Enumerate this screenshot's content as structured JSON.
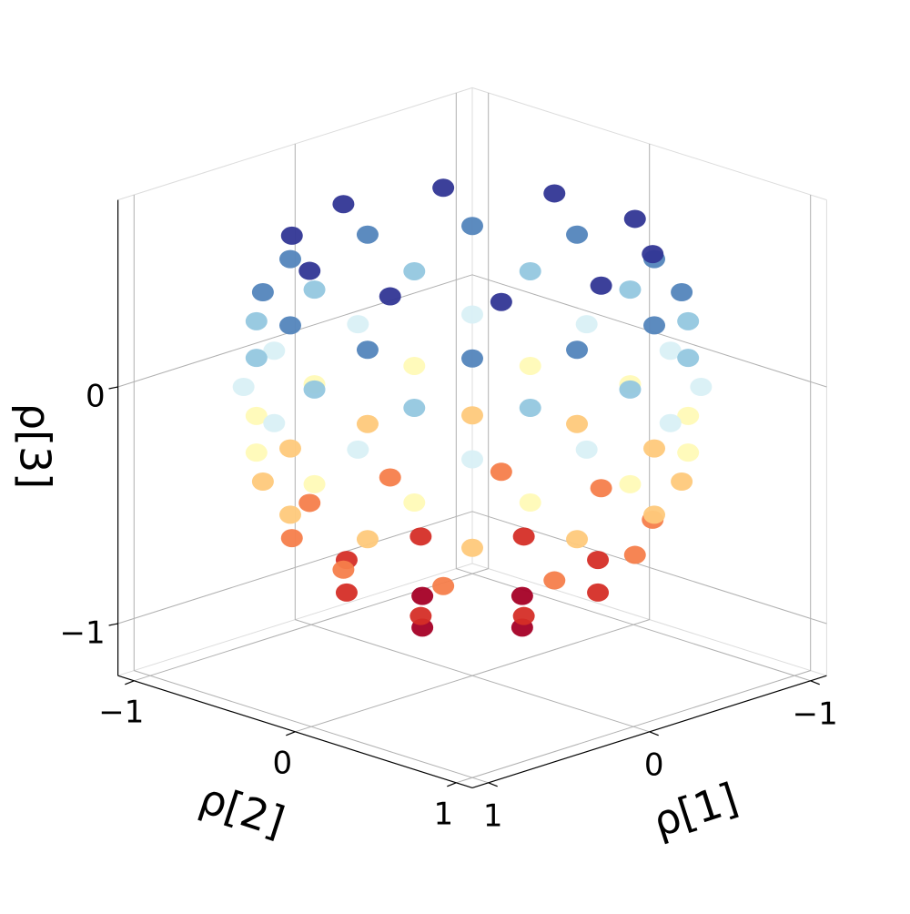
{
  "chart_data": {
    "type": "scatter3d",
    "xlabel": "ρ[1]",
    "ylabel": "ρ[2]",
    "zlabel": "ρ[3]",
    "xlim": [
      -1.1,
      1.1
    ],
    "ylim": [
      -1.1,
      1.1
    ],
    "zlim": [
      -1.22,
      0.79
    ],
    "xticks": [
      {
        "value": -1,
        "label": "−1"
      },
      0,
      1
    ],
    "yticks": [
      {
        "value": -1,
        "label": "−1"
      },
      0,
      1
    ],
    "zticks": [
      {
        "value": -1,
        "label": "−1"
      },
      0
    ],
    "colormap": "RdYlBu",
    "grid": true,
    "x": [
      0.31,
      0,
      -0.31,
      0,
      0.55,
      0.23,
      -0.23,
      -0.55,
      -0.55,
      -0.23,
      0.23,
      0.55,
      0.8,
      0.65,
      0.25,
      -0.25,
      -0.65,
      -0.8,
      -0.65,
      -0.25,
      0.25,
      0.65,
      0.89,
      0.65,
      0.24,
      -0.24,
      -0.65,
      -0.89,
      -0.89,
      -0.65,
      -0.24,
      0.24,
      0.65,
      0.89,
      0.98,
      0.85,
      0.49,
      0,
      -0.49,
      -0.85,
      -0.98,
      -0.85,
      -0.49,
      0,
      0.49,
      0.85,
      0.97,
      0.71,
      0.26,
      -0.26,
      -0.71,
      -0.97,
      -0.97,
      -0.71,
      -0.26,
      0.26,
      0.71,
      0.97,
      0.98,
      0.85,
      0.49,
      0,
      -0.49,
      -0.85,
      -0.98,
      -0.85,
      -0.49,
      0,
      0.49,
      0.85,
      0.89,
      0.65,
      0.24,
      -0.24,
      -0.65,
      -0.89,
      -0.89,
      -0.65,
      -0.24,
      0.24,
      0.65,
      0.89,
      0.76,
      0.47,
      0,
      -0.47,
      -0.76,
      -0.76,
      -0.47,
      0,
      0.47,
      0.76
    ],
    "y": [
      0,
      0.31,
      0,
      -0.31,
      0.23,
      0.55,
      0.55,
      0.23,
      -0.23,
      -0.55,
      -0.55,
      -0.23,
      0,
      0.47,
      0.76,
      0.76,
      0.47,
      0,
      -0.47,
      -0.76,
      -0.76,
      -0.47,
      0.24,
      0.65,
      0.89,
      0.89,
      0.65,
      0.24,
      -0.24,
      -0.65,
      -0.89,
      -0.89,
      -0.65,
      -0.24,
      0,
      0.49,
      0.85,
      0.98,
      0.85,
      0.49,
      0,
      -0.49,
      -0.85,
      -0.98,
      -0.85,
      -0.49,
      0.26,
      0.71,
      0.97,
      0.97,
      0.71,
      0.26,
      -0.26,
      -0.71,
      -0.97,
      -0.97,
      -0.71,
      -0.26,
      0,
      0.49,
      0.85,
      0.98,
      0.85,
      0.49,
      0,
      -0.49,
      -0.85,
      -0.98,
      -0.85,
      -0.49,
      0.24,
      0.65,
      0.89,
      0.89,
      0.65,
      0.24,
      -0.24,
      -0.65,
      -0.89,
      -0.89,
      -0.65,
      -0.24,
      0.25,
      0.65,
      0.8,
      0.65,
      0.25,
      -0.25,
      -0.65,
      -0.8,
      -0.65,
      -0.25
    ],
    "z": [
      -0.95,
      -0.95,
      -0.95,
      -0.95,
      -0.8,
      -0.8,
      -0.8,
      -0.8,
      -0.8,
      -0.8,
      -0.8,
      -0.8,
      -0.6,
      -0.6,
      -0.6,
      -0.6,
      -0.6,
      -0.6,
      -0.6,
      -0.6,
      -0.6,
      -0.6,
      -0.4,
      -0.4,
      -0.4,
      -0.4,
      -0.4,
      -0.4,
      -0.4,
      -0.4,
      -0.4,
      -0.4,
      -0.4,
      -0.4,
      -0.2,
      -0.2,
      -0.2,
      -0.2,
      -0.2,
      -0.2,
      -0.2,
      -0.2,
      -0.2,
      -0.2,
      -0.2,
      -0.2,
      0,
      0,
      0,
      0,
      0,
      0,
      0,
      0,
      0,
      0,
      0,
      0,
      0.2,
      0.2,
      0.2,
      0.2,
      0.2,
      0.2,
      0.2,
      0.2,
      0.2,
      0.2,
      0.2,
      0.2,
      0.4,
      0.4,
      0.4,
      0.4,
      0.4,
      0.4,
      0.4,
      0.4,
      0.4,
      0.4,
      0.4,
      0.4,
      0.6,
      0.6,
      0.6,
      0.6,
      0.6,
      0.6,
      0.6,
      0.6,
      0.6,
      0.6
    ]
  }
}
